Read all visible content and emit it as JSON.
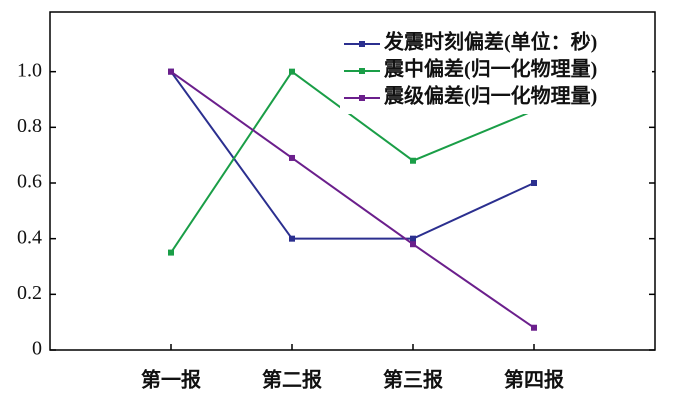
{
  "chart_data": {
    "type": "line",
    "categories": [
      "第一报",
      "第二报",
      "第三报",
      "第四报"
    ],
    "series": [
      {
        "name": "发震时刻偏差(单位：秒)",
        "color": "#2b2f8f",
        "values": [
          1.0,
          0.4,
          0.4,
          0.6
        ]
      },
      {
        "name": "震中偏差(归一化物理量)",
        "color": "#1a9e47",
        "values": [
          0.35,
          1.0,
          0.68,
          0.86
        ]
      },
      {
        "name": "震级偏差(归一化物理量)",
        "color": "#6b1f8c",
        "values": [
          1.0,
          0.69,
          0.38,
          0.08
        ]
      }
    ],
    "ylim": [
      0,
      1.2
    ],
    "yticks": [
      0,
      0.2,
      0.4,
      0.6,
      0.8,
      {
        "value": 1,
        "label": "1.0"
      }
    ],
    "legend": "top-right"
  }
}
